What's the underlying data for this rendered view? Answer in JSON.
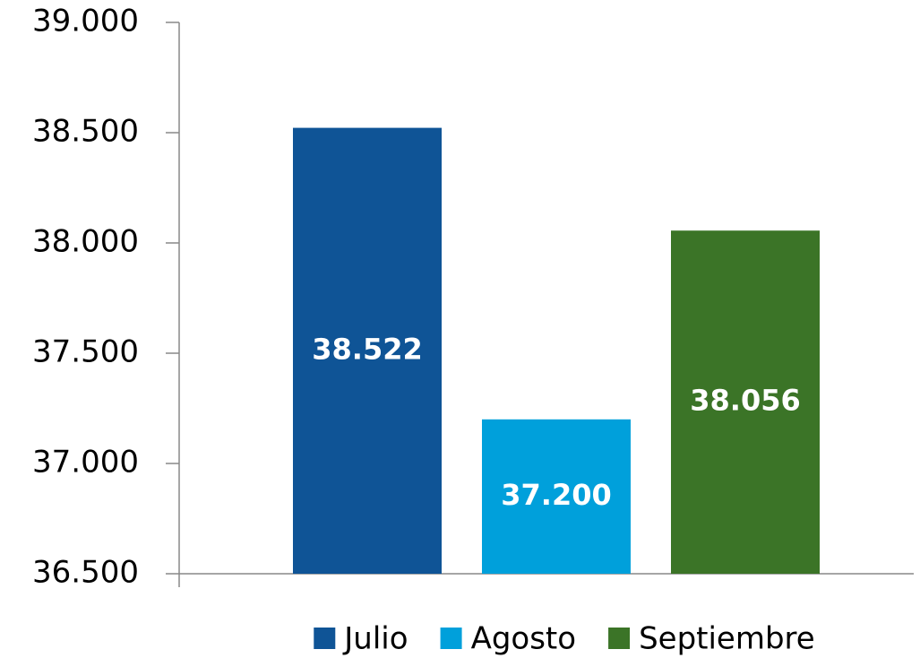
{
  "chart_data": {
    "type": "bar",
    "series": [
      {
        "name": "Julio",
        "color": "#0f5496",
        "values": [
          38522
        ],
        "value_labels": [
          "38.522"
        ]
      },
      {
        "name": "Agosto",
        "color": "#00a0db",
        "values": [
          37200
        ],
        "value_labels": [
          "37.200"
        ]
      },
      {
        "name": "Septiembre",
        "color": "#3b7427",
        "values": [
          38056
        ],
        "value_labels": [
          "38.056"
        ]
      }
    ],
    "ylim": [
      36500,
      39000
    ],
    "yticks": [
      {
        "value": 36500,
        "label": "36.500"
      },
      {
        "value": 37000,
        "label": "37.000"
      },
      {
        "value": 37500,
        "label": "37.500"
      },
      {
        "value": 38000,
        "label": "38.000"
      },
      {
        "value": 38500,
        "label": "38.500"
      },
      {
        "value": 39000,
        "label": "39.000"
      }
    ],
    "grid": false,
    "legend": "bottom"
  }
}
